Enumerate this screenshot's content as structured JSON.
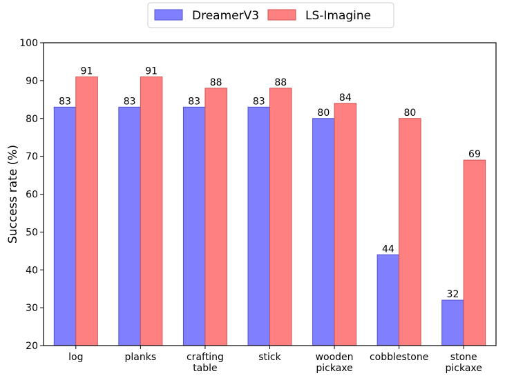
{
  "chart_data": {
    "type": "bar",
    "title": "",
    "xlabel": "",
    "ylabel": "Success rate (%)",
    "ylim": [
      20,
      100
    ],
    "yticks": [
      20,
      30,
      40,
      50,
      60,
      70,
      80,
      90,
      100
    ],
    "grid": false,
    "legend_position": "top-center",
    "categories": [
      [
        "log"
      ],
      [
        "planks"
      ],
      [
        "crafting",
        "table"
      ],
      [
        "stick"
      ],
      [
        "wooden",
        "pickaxe"
      ],
      [
        "cobblestone"
      ],
      [
        "stone",
        "pickaxe"
      ]
    ],
    "series": [
      {
        "name": "DreamerV3",
        "color": "#8080ff",
        "edge_color": "#5050d0",
        "values": [
          83,
          83,
          83,
          83,
          80,
          44,
          32
        ]
      },
      {
        "name": "LS-Imagine",
        "color": "#ff8080",
        "edge_color": "#d05050",
        "values": [
          91,
          91,
          88,
          88,
          84,
          80,
          69
        ]
      }
    ]
  }
}
